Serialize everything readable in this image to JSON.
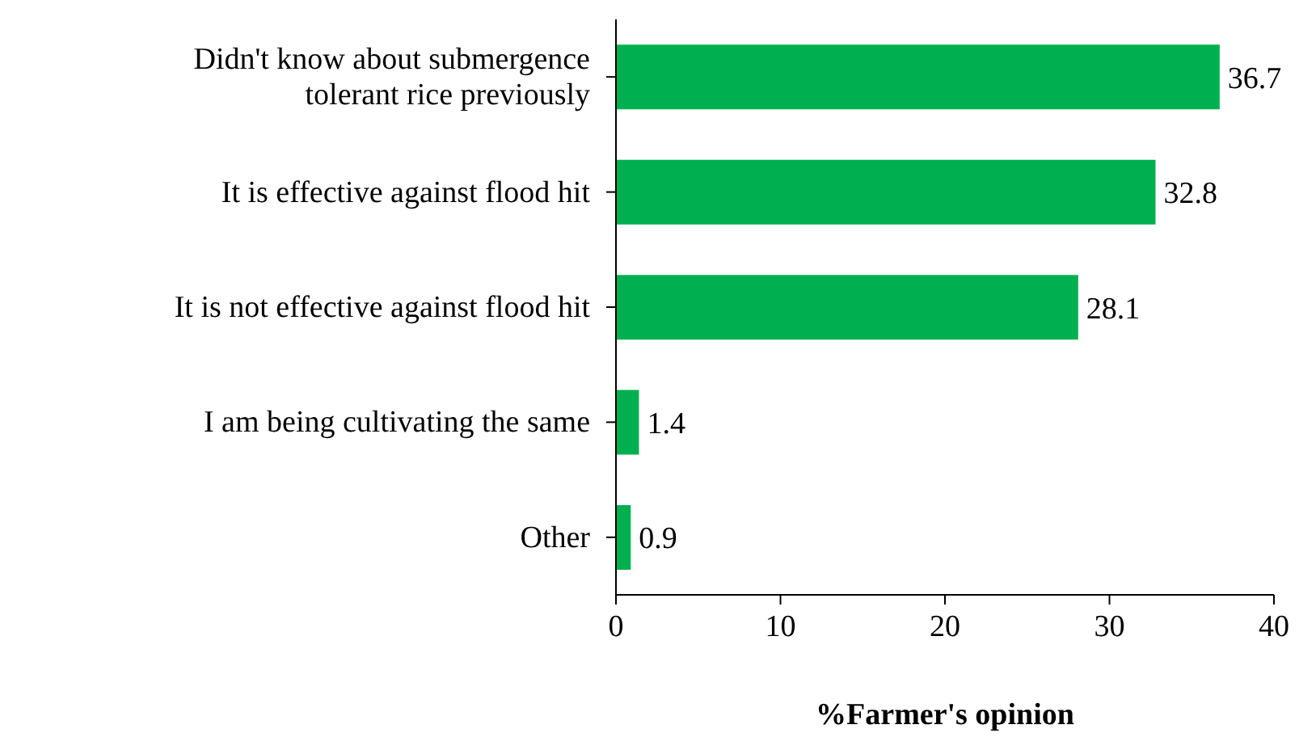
{
  "chart_data": {
    "type": "bar",
    "orientation": "horizontal",
    "xlabel": "%Farmer's opinion",
    "categories": [
      "Didn't know about submergence tolerant rice previously",
      "It is effective against flood hit",
      "It is not effective against flood hit",
      "I am being cultivating the same",
      "Other"
    ],
    "values": [
      36.7,
      32.8,
      28.1,
      1.4,
      0.9
    ],
    "color": "#00b050",
    "xlim": [
      0,
      40
    ],
    "xticks": [
      0,
      10,
      20,
      30,
      40
    ],
    "data_labels": true,
    "grid": false
  }
}
